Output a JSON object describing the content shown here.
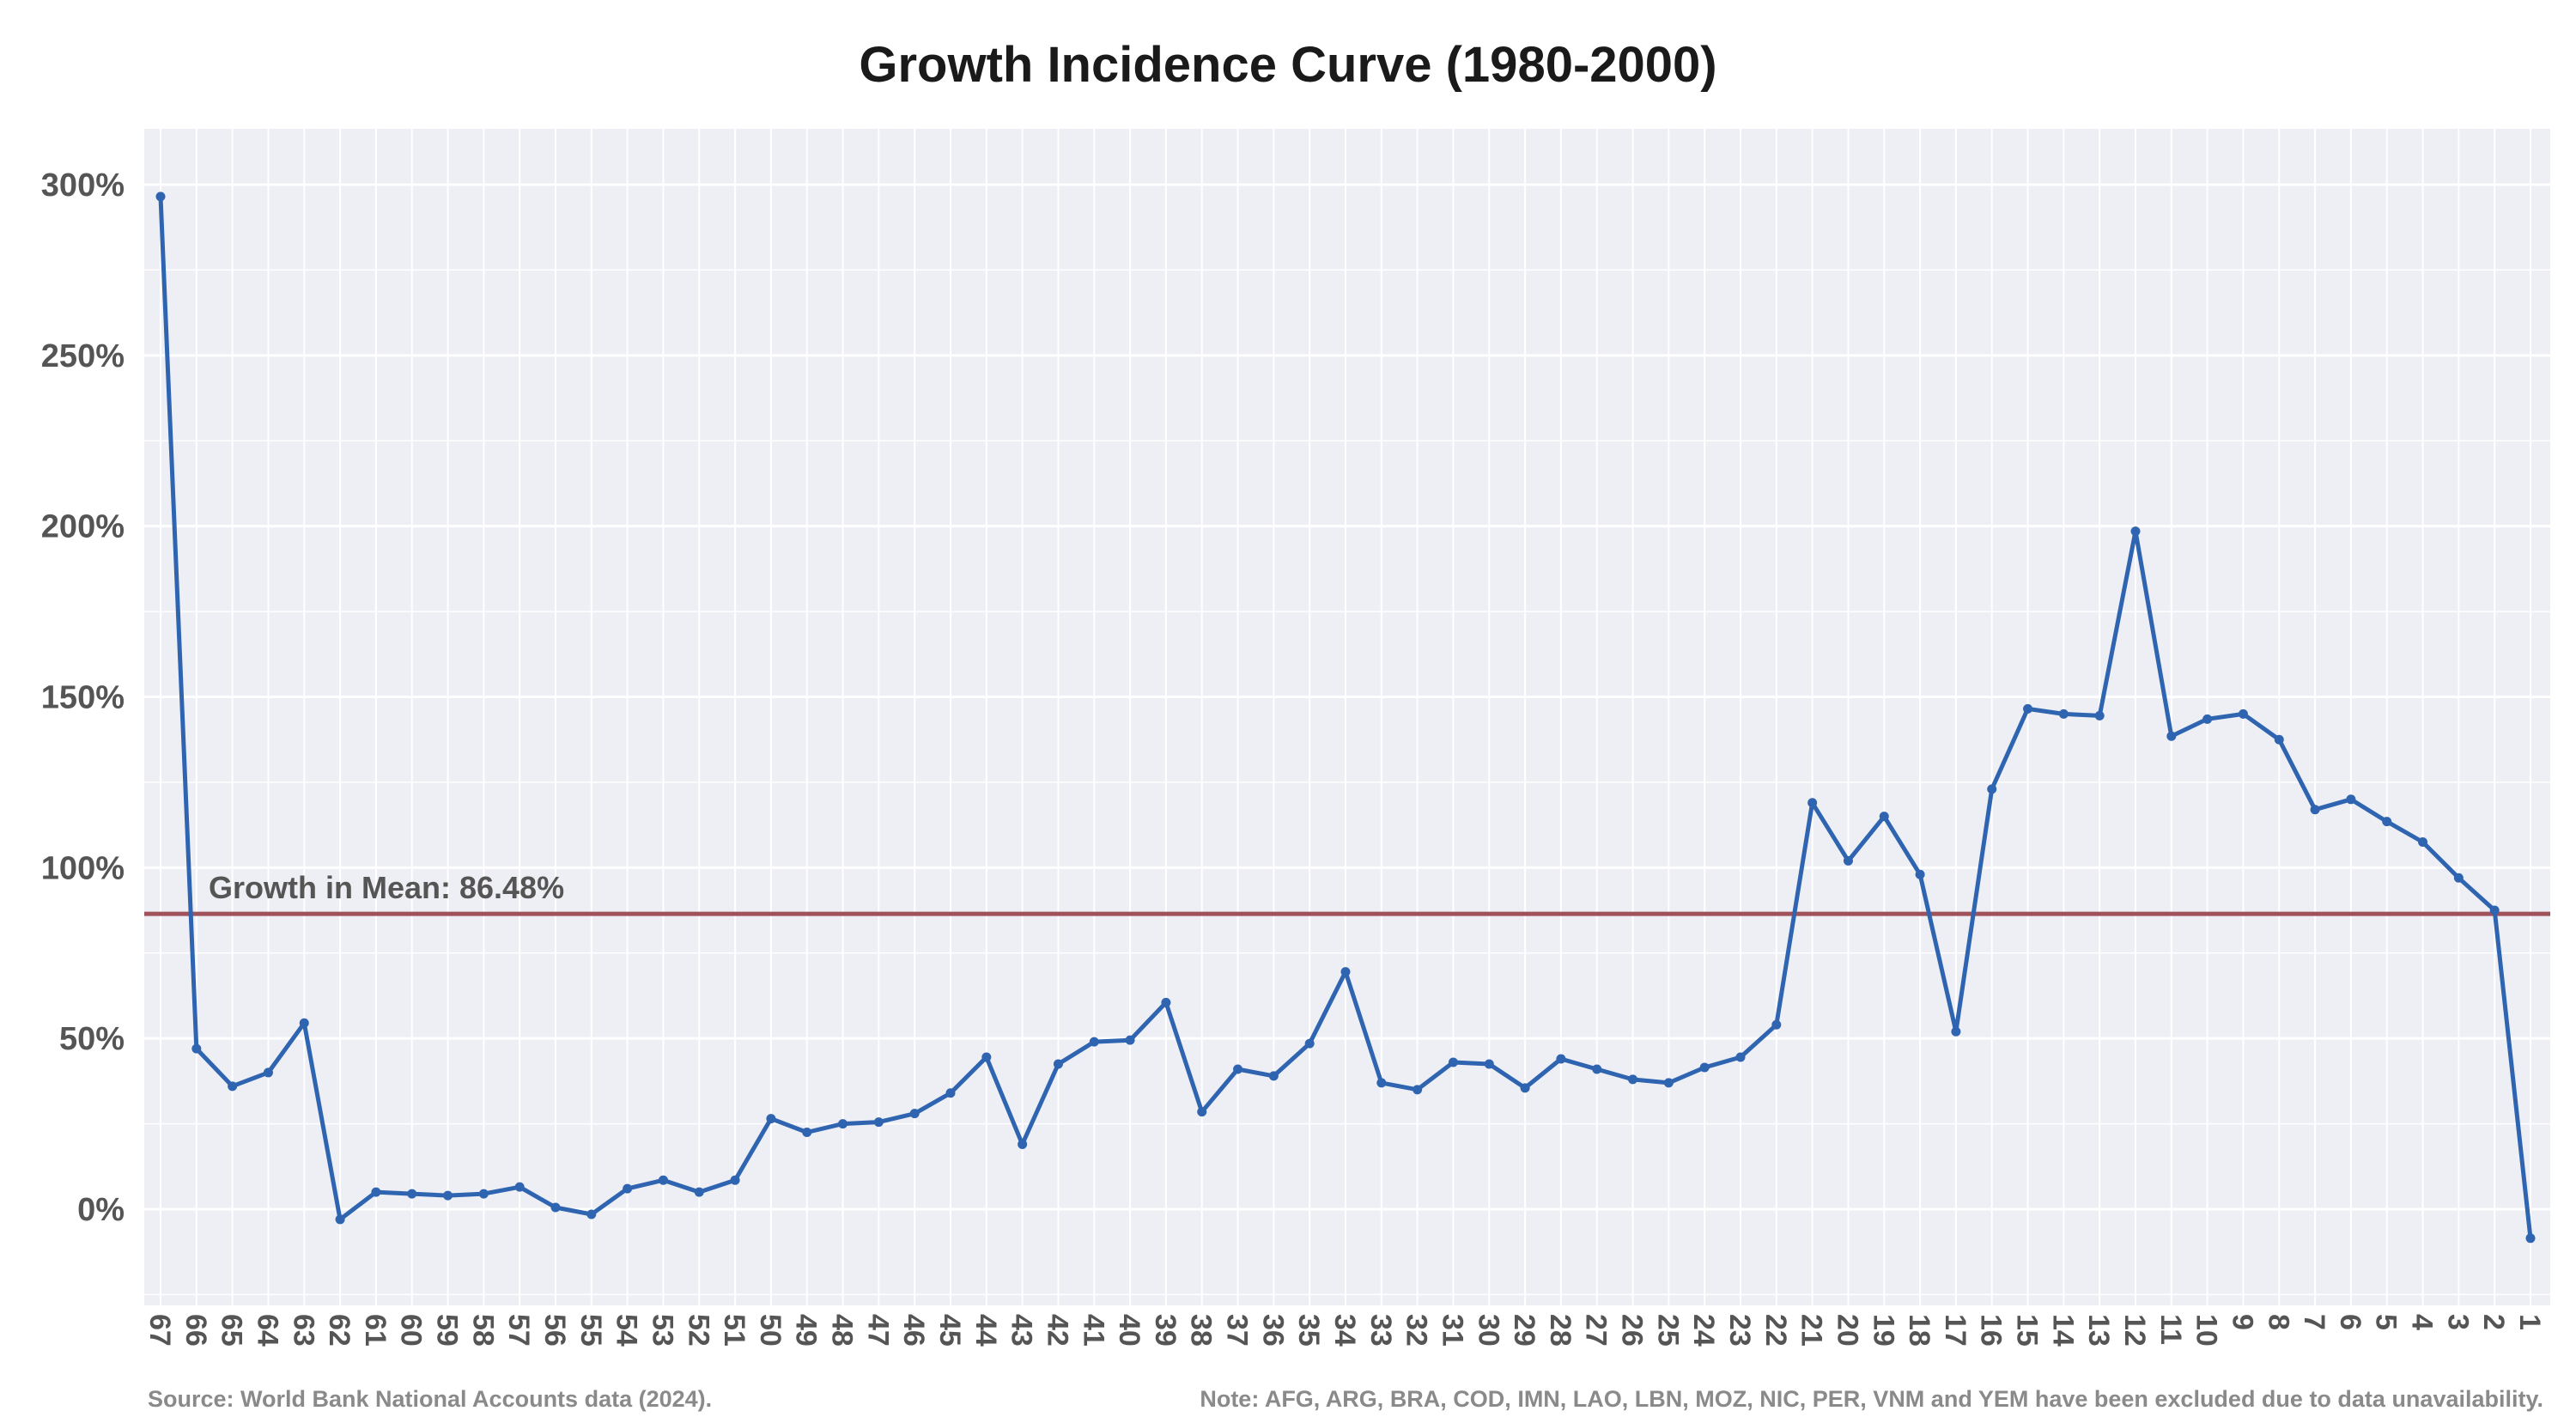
{
  "chart_data": {
    "type": "line",
    "title": "Growth Incidence Curve (1980-2000)",
    "xlabel": "",
    "ylabel": "",
    "ylim": [
      -30,
      315
    ],
    "y_ticks": [
      0,
      50,
      100,
      150,
      200,
      250,
      300
    ],
    "y_tick_labels": [
      "0%",
      "50%",
      "100%",
      "150%",
      "200%",
      "250%",
      "300%"
    ],
    "grid": true,
    "categories": [
      "67",
      "66",
      "65",
      "64",
      "63",
      "62",
      "61",
      "60",
      "59",
      "58",
      "57",
      "56",
      "55",
      "54",
      "53",
      "52",
      "51",
      "50",
      "49",
      "48",
      "47",
      "46",
      "45",
      "44",
      "43",
      "42",
      "41",
      "40",
      "39",
      "38",
      "37",
      "36",
      "35",
      "34",
      "33",
      "32",
      "31",
      "30",
      "29",
      "28",
      "27",
      "26",
      "25",
      "24",
      "23",
      "22",
      "21",
      "20",
      "19",
      "18",
      "17",
      "16",
      "15",
      "14",
      "13",
      "12",
      "11",
      "10",
      "9",
      "8",
      "7",
      "6",
      "5",
      "4",
      "3",
      "2",
      "1"
    ],
    "series": [
      {
        "color": "#2e64b0",
        "values": [
          296.5,
          47.0,
          36.0,
          40.0,
          54.5,
          -3.0,
          5.0,
          4.5,
          4.0,
          4.5,
          6.5,
          0.5,
          -1.5,
          6.0,
          8.5,
          5.0,
          8.5,
          26.5,
          22.5,
          25.0,
          25.5,
          28.0,
          34.0,
          44.5,
          19.0,
          42.5,
          49.0,
          49.5,
          60.5,
          28.5,
          41.0,
          39.0,
          48.5,
          69.5,
          37.0,
          35.0,
          43.0,
          42.5,
          35.5,
          44.0,
          41.0,
          38.0,
          37.0,
          41.5,
          44.5,
          54.0,
          119.0,
          102.0,
          115.0,
          98.0,
          52.0,
          123.0,
          146.5,
          145.0,
          144.5,
          198.5,
          138.5,
          143.5,
          145.0,
          137.5,
          117.0,
          120.0,
          113.5,
          107.5,
          97.0,
          87.5,
          -8.5
        ]
      }
    ],
    "mean_line": {
      "value": 86.48,
      "label": "Growth in Mean: 86.48%",
      "color": "#a0525a"
    },
    "source": "Source: World Bank National Accounts data (2024).",
    "note": "Note: AFG, ARG, BRA, COD, IMN, LAO, LBN, MOZ, NIC, PER, VNM and YEM have been excluded due to data unavailability."
  }
}
